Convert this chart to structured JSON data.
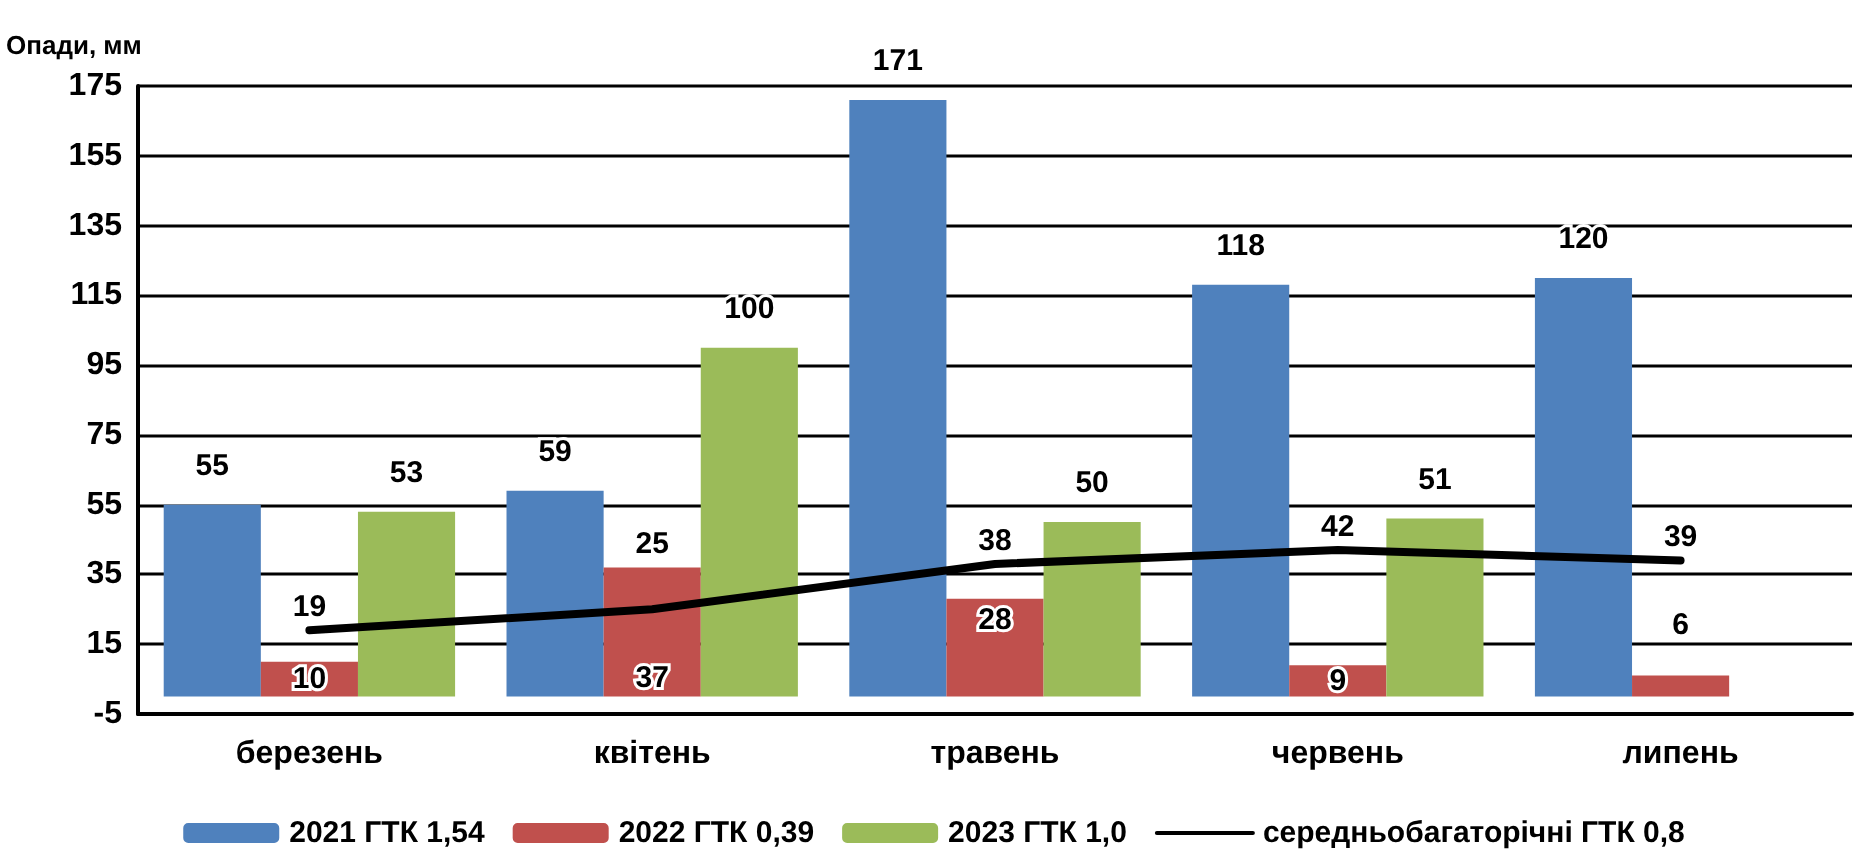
{
  "chart_data": {
    "type": "bar",
    "ylabel": "Опади, мм",
    "categories": [
      "березень",
      "квітень",
      "травень",
      "червень",
      "липень"
    ],
    "series": [
      {
        "name": "2021 ГТК 1,54",
        "color": "#4f81bd",
        "values": [
          55,
          59,
          171,
          118,
          120
        ]
      },
      {
        "name": "2022 ГТК 0,39",
        "color": "#c0504d",
        "values": [
          10,
          37,
          28,
          9,
          6
        ]
      },
      {
        "name": "2023 ГТК 1,0",
        "color": "#9bbb59",
        "values": [
          53,
          100,
          50,
          51,
          null
        ]
      },
      {
        "name": "середньобагаторічні ГТК 0,8",
        "type": "line",
        "color": "#000000",
        "values": [
          19,
          25,
          38,
          42,
          39
        ]
      }
    ],
    "ylim": [
      -5,
      175
    ],
    "yticks": [
      -5,
      15,
      35,
      55,
      75,
      95,
      115,
      135,
      155,
      175
    ],
    "grid": "y",
    "legend": "bottom",
    "data_labels": true,
    "marker": "none",
    "line_style": "solid"
  }
}
